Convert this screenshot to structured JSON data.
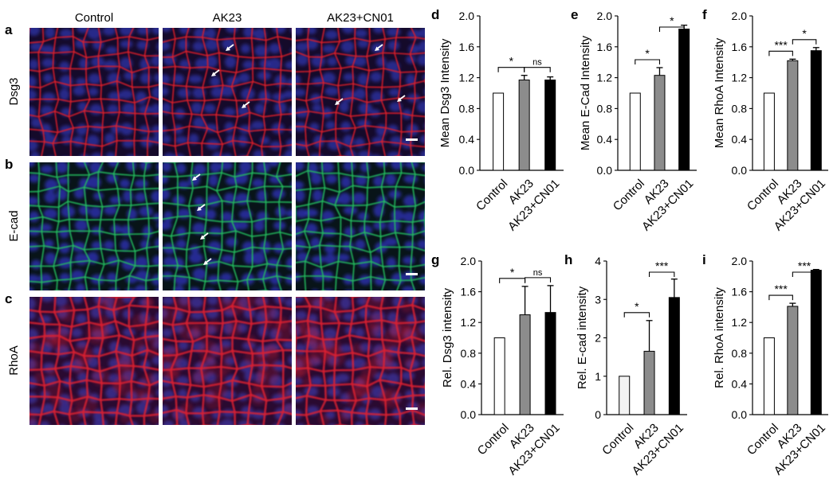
{
  "column_titles": [
    "Control",
    "AK23",
    "AK23+CN01"
  ],
  "row_labels": [
    "Dsg3",
    "E-cad",
    "RhoA"
  ],
  "panel_labels": [
    "a",
    "b",
    "c"
  ],
  "micrograph_rows": [
    {
      "channel_color": "#e0202a",
      "nucleus_color": "#2a2f9a",
      "background": "#150a2a",
      "arrows_per_column": [
        0,
        3,
        3
      ]
    },
    {
      "channel_color": "#22c060",
      "nucleus_color": "#2a30a8",
      "background": "#081418",
      "arrows_per_column": [
        0,
        4,
        0
      ]
    },
    {
      "channel_color": "#e02030",
      "nucleus_color": "#3a2f90",
      "background": "#2a0a30",
      "arrows_per_column": [
        0,
        0,
        0
      ]
    }
  ],
  "bar_colors": [
    "#ffffff",
    "#8c8c8c",
    "#000000"
  ],
  "chart_data": [
    {
      "id": "d",
      "type": "bar",
      "categories": [
        "Control",
        "AK23",
        "AK23+CN01"
      ],
      "values": [
        1.0,
        1.17,
        1.17
      ],
      "errors": [
        0,
        0.06,
        0.04
      ],
      "ylabel": "Mean Dsg3 Intensity",
      "ylim": [
        0,
        2.0
      ],
      "yticks": [
        "0.0",
        "0.4",
        "0.8",
        "1.2",
        "1.6",
        "2.0"
      ],
      "significance": [
        {
          "from": 0,
          "to": 1,
          "label": "*"
        },
        {
          "from": 1,
          "to": 2,
          "label": "ns"
        }
      ]
    },
    {
      "id": "e",
      "type": "bar",
      "categories": [
        "Control",
        "AK23",
        "AK23+CN01"
      ],
      "values": [
        1.0,
        1.23,
        1.83
      ],
      "errors": [
        0,
        0.1,
        0.05
      ],
      "ylabel": "Mean E-Cad Intensity",
      "ylim": [
        0,
        2.0
      ],
      "yticks": [
        "0.0",
        "0.4",
        "0.8",
        "1.2",
        "1.6",
        "2.0"
      ],
      "significance": [
        {
          "from": 0,
          "to": 1,
          "label": "*"
        },
        {
          "from": 1,
          "to": 2,
          "label": "*"
        }
      ]
    },
    {
      "id": "f",
      "type": "bar",
      "categories": [
        "Control",
        "AK23",
        "AK23+CN01"
      ],
      "values": [
        1.0,
        1.42,
        1.55
      ],
      "errors": [
        0,
        0.02,
        0.04
      ],
      "ylabel": "Mean RhoA Intensity",
      "ylim": [
        0,
        2.0
      ],
      "yticks": [
        "0.0",
        "0.4",
        "0.8",
        "1.2",
        "1.6",
        "2.0"
      ],
      "significance": [
        {
          "from": 0,
          "to": 1,
          "label": "***"
        },
        {
          "from": 1,
          "to": 2,
          "label": "*"
        }
      ]
    },
    {
      "id": "g",
      "type": "bar",
      "categories": [
        "Control",
        "AK23",
        "AK23+CN01"
      ],
      "values": [
        1.0,
        1.3,
        1.33
      ],
      "errors": [
        0,
        0.37,
        0.35
      ],
      "ylabel": "Rel. Dsg3 intensity",
      "ylim": [
        0,
        2.0
      ],
      "yticks": [
        "0.0",
        "0.4",
        "0.8",
        "1.2",
        "1.6",
        "2.0"
      ],
      "significance": [
        {
          "from": 0,
          "to": 1,
          "label": "*"
        },
        {
          "from": 1,
          "to": 2,
          "label": "ns"
        }
      ]
    },
    {
      "id": "h",
      "type": "bar",
      "categories": [
        "Control",
        "AK23",
        "AK23+CN01"
      ],
      "values": [
        1.0,
        1.65,
        3.05
      ],
      "errors": [
        0,
        0.8,
        0.48
      ],
      "ylabel": "Rel. E-cad intensity",
      "ylim": [
        0,
        4
      ],
      "yticks": [
        "0",
        "1",
        "2",
        "3",
        "4"
      ],
      "significance": [
        {
          "from": 0,
          "to": 1,
          "label": "*"
        },
        {
          "from": 1,
          "to": 2,
          "label": "***"
        }
      ]
    },
    {
      "id": "i",
      "type": "bar",
      "categories": [
        "Control",
        "AK23",
        "AK23+CN01"
      ],
      "values": [
        1.0,
        1.41,
        1.88
      ],
      "errors": [
        0,
        0.04,
        0.01
      ],
      "ylabel": "Rel. RhoA intensity",
      "ylim": [
        0,
        2.0
      ],
      "yticks": [
        "0.0",
        "0.4",
        "0.8",
        "1.2",
        "1.6",
        "2.0"
      ],
      "significance": [
        {
          "from": 0,
          "to": 1,
          "label": "***"
        },
        {
          "from": 1,
          "to": 2,
          "label": "***"
        }
      ]
    }
  ]
}
